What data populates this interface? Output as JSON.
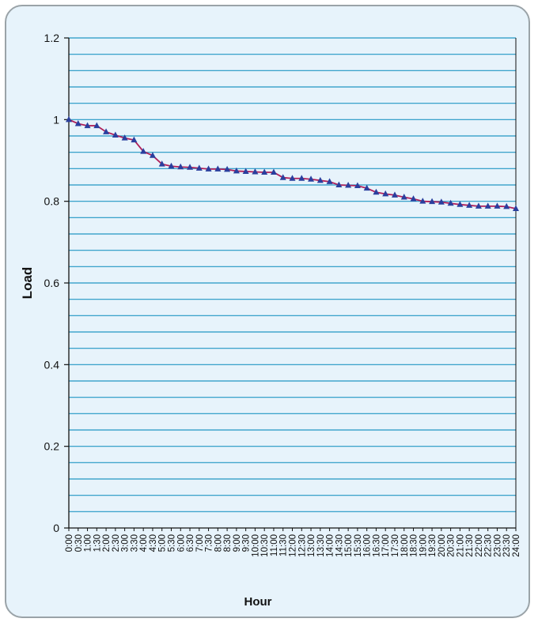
{
  "chart_data": {
    "type": "line",
    "title": "",
    "xlabel": "Hour",
    "ylabel": "Load",
    "ylim": [
      0,
      1.2
    ],
    "y_ticks": [
      "0",
      "0.2",
      "0.4",
      "0.6",
      "0.8",
      "1",
      "1.2"
    ],
    "grid": true,
    "legend": "none",
    "colors": {
      "line": "#b0205a",
      "marker": "#2a3f9e",
      "grid": "#2196c4",
      "background": "#e7f3fb",
      "border": "#9aa3a8"
    },
    "x": [
      "0:00",
      "0:30",
      "1:00",
      "1:30",
      "2:00",
      "2:30",
      "3:00",
      "3:30",
      "4:00",
      "4:30",
      "5:00",
      "5:30",
      "6:00",
      "6:30",
      "7:00",
      "7:30",
      "8:00",
      "8:30",
      "9:00",
      "9:30",
      "10:00",
      "10:30",
      "11:00",
      "11:30",
      "12:00",
      "12:30",
      "13:00",
      "13:30",
      "14:00",
      "14:30",
      "15:00",
      "15:30",
      "16:00",
      "16:30",
      "17:00",
      "17:30",
      "18:00",
      "18:30",
      "19:00",
      "19:30",
      "20:00",
      "20:30",
      "21:00",
      "21:30",
      "22:00",
      "22:30",
      "23:00",
      "23:30",
      "24:00"
    ],
    "series": [
      {
        "values": [
          1.0,
          0.99,
          0.985,
          0.985,
          0.97,
          0.962,
          0.955,
          0.95,
          0.922,
          0.912,
          0.891,
          0.886,
          0.884,
          0.883,
          0.881,
          0.879,
          0.879,
          0.878,
          0.874,
          0.873,
          0.872,
          0.871,
          0.871,
          0.858,
          0.856,
          0.856,
          0.854,
          0.851,
          0.848,
          0.84,
          0.839,
          0.838,
          0.832,
          0.822,
          0.818,
          0.815,
          0.81,
          0.806,
          0.8,
          0.799,
          0.798,
          0.795,
          0.792,
          0.79,
          0.788,
          0.788,
          0.788,
          0.787,
          0.782
        ]
      }
    ]
  }
}
